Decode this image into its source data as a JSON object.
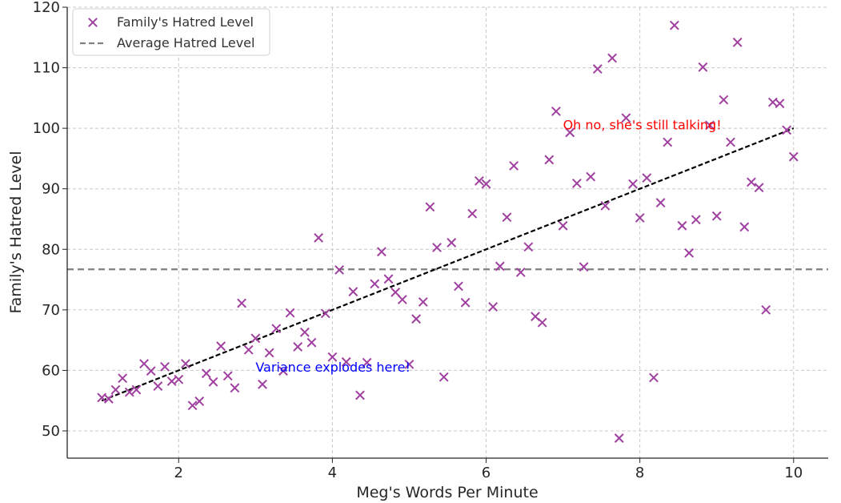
{
  "chart_data": {
    "type": "scatter",
    "xlabel": "Meg's Words Per Minute",
    "ylabel": "Family's Hatred Level",
    "xlim": [
      0.55,
      10.45
    ],
    "ylim": [
      45.5,
      120
    ],
    "x_ticks": [
      2,
      4,
      6,
      8,
      10
    ],
    "y_ticks": [
      50,
      60,
      70,
      80,
      90,
      100,
      110,
      120
    ],
    "grid": true,
    "legend_position": "top-left",
    "series": [
      {
        "name": "Family's Hatred Level",
        "kind": "scatter",
        "marker": "x",
        "color": "#a040a0",
        "x": [
          1.0,
          1.09,
          1.18,
          1.27,
          1.36,
          1.45,
          1.55,
          1.64,
          1.73,
          1.82,
          1.91,
          2.0,
          2.09,
          2.18,
          2.27,
          2.36,
          2.45,
          2.55,
          2.64,
          2.73,
          2.82,
          2.91,
          3.0,
          3.09,
          3.18,
          3.27,
          3.36,
          3.45,
          3.55,
          3.64,
          3.73,
          3.82,
          3.91,
          4.0,
          4.09,
          4.18,
          4.27,
          4.36,
          4.45,
          4.55,
          4.64,
          4.73,
          4.82,
          4.91,
          5.0,
          5.09,
          5.18,
          5.27,
          5.36,
          5.45,
          5.55,
          5.64,
          5.73,
          5.82,
          5.91,
          6.0,
          6.09,
          6.18,
          6.27,
          6.36,
          6.45,
          6.55,
          6.64,
          6.73,
          6.82,
          6.91,
          7.0,
          7.09,
          7.18,
          7.27,
          7.36,
          7.45,
          7.55,
          7.64,
          7.73,
          7.82,
          7.91,
          8.0,
          8.09,
          8.18,
          8.27,
          8.36,
          8.45,
          8.55,
          8.64,
          8.73,
          8.82,
          8.91,
          9.0,
          9.09,
          9.18,
          9.27,
          9.36,
          9.45,
          9.55,
          9.64,
          9.73,
          9.82,
          9.91,
          10.0
        ],
        "y": [
          55.5,
          55.3,
          56.8,
          58.7,
          56.4,
          56.8,
          61.1,
          59.9,
          57.4,
          60.6,
          58.2,
          58.5,
          61.1,
          54.2,
          54.9,
          59.5,
          58.1,
          64.0,
          59.1,
          57.1,
          71.1,
          63.4,
          65.3,
          57.7,
          62.9,
          66.9,
          59.9,
          69.5,
          63.9,
          66.3,
          64.6,
          81.9,
          69.4,
          62.2,
          76.6,
          61.4,
          73.0,
          55.9,
          61.3,
          74.3,
          79.6,
          75.1,
          72.9,
          71.7,
          61.0,
          68.5,
          71.3,
          87.0,
          80.3,
          58.9,
          81.1,
          73.9,
          71.2,
          85.9,
          91.3,
          90.8,
          70.5,
          77.2,
          85.3,
          93.8,
          76.2,
          80.4,
          68.9,
          67.9,
          94.8,
          102.8,
          83.9,
          99.3,
          90.9,
          77.1,
          92.0,
          109.8,
          87.2,
          111.6,
          48.8,
          101.7,
          90.8,
          85.2,
          91.8,
          58.8,
          87.7,
          97.7,
          117.0,
          83.9,
          79.4,
          84.9,
          110.1,
          100.5,
          85.5,
          104.7,
          97.7,
          114.2,
          83.7,
          91.1,
          90.2,
          70.0,
          104.3,
          104.1,
          99.7,
          95.3
        ]
      },
      {
        "name": "Average Hatred Level",
        "kind": "hline",
        "color": "#808080",
        "y": 76.7
      },
      {
        "kind": "trend-line",
        "color": "#000000",
        "x": [
          1,
          10
        ],
        "y": [
          55,
          100
        ]
      }
    ],
    "annotations": [
      {
        "text": "Oh no, she's still talking!",
        "x": 7.0,
        "y": 99.8,
        "color": "#ff0000"
      },
      {
        "text": "Variance explodes here!",
        "x": 3.0,
        "y": 59.8,
        "color": "#0000ff"
      }
    ]
  }
}
